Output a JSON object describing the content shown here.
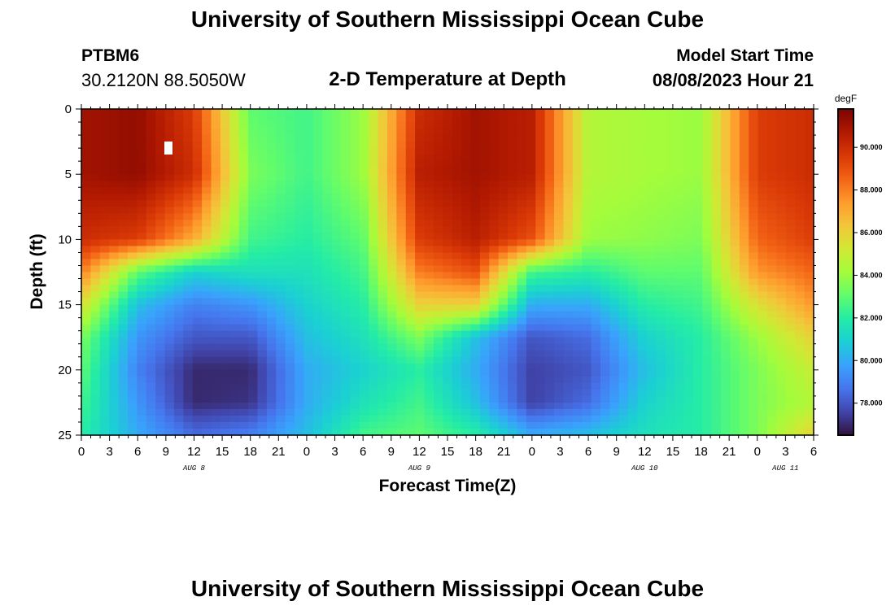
{
  "header": {
    "title": "University of Southern Mississippi Ocean Cube",
    "station": "PTBM6",
    "coords": "30.2120N  88.5050W",
    "subtitle": "2-D Temperature at Depth",
    "model_start_label": "Model Start Time",
    "model_start_value": "08/08/2023 Hour 21"
  },
  "footer": {
    "title": "University of Southern Mississippi Ocean Cube"
  },
  "chart_data": {
    "type": "heatmap",
    "title": "2-D Temperature at Depth",
    "xlabel": "Forecast Time(Z)",
    "ylabel": "Depth (ft)",
    "x_range_hours": [
      0,
      78
    ],
    "y_range_ft": [
      0,
      25
    ],
    "y_ticks": [
      0,
      5,
      10,
      15,
      20,
      25
    ],
    "x_tick_labels": [
      "0",
      "3",
      "6",
      "9",
      "12",
      "15",
      "18",
      "21",
      "0",
      "3",
      "6",
      "9",
      "12",
      "15",
      "18",
      "21",
      "0",
      "3",
      "6",
      "9",
      "12",
      "15",
      "18",
      "21",
      "0",
      "3",
      "6"
    ],
    "date_labels": [
      {
        "label": "AUG 8",
        "hour": 12
      },
      {
        "label": "AUG 9",
        "hour": 36
      },
      {
        "label": "AUG 10",
        "hour": 60
      },
      {
        "label": "AUG 11",
        "hour": 75
      }
    ],
    "colorbar": {
      "unit": "degF",
      "min": 76.5,
      "max": 91.8,
      "ticks": [
        "78.000",
        "80.000",
        "82.000",
        "84.000",
        "86.000",
        "88.000",
        "90.000"
      ],
      "tick_values": [
        78,
        80,
        82,
        84,
        86,
        88,
        90
      ],
      "colors": [
        "#30123b",
        "#4145ab",
        "#4675ed",
        "#39a2fc",
        "#1bcfd4",
        "#24eca6",
        "#61fc6c",
        "#a4fc3b",
        "#d1e834",
        "#f3c63a",
        "#fe9b2d",
        "#f36315",
        "#d93806",
        "#b11901",
        "#7a0402"
      ]
    },
    "grid": {
      "n_depth": 50,
      "n_time": 79,
      "hours": [
        0,
        6,
        12,
        18,
        24,
        30,
        36,
        42,
        48,
        54,
        60,
        66,
        72,
        78
      ],
      "depths": [
        0,
        5,
        10,
        12.5,
        15,
        17.5,
        20,
        22.5,
        25
      ],
      "temperature_degF": [
        [
          91.0,
          91.3,
          89.5,
          83.0,
          82.5,
          84.0,
          90.0,
          91.0,
          90.5,
          84.5,
          84.2,
          84.0,
          89.5,
          90.0
        ],
        [
          91.0,
          91.3,
          90.0,
          83.5,
          82.5,
          84.0,
          90.5,
          91.0,
          90.5,
          84.5,
          84.2,
          84.0,
          89.5,
          90.0
        ],
        [
          90.0,
          89.5,
          87.0,
          82.5,
          82.0,
          83.0,
          89.5,
          90.5,
          89.0,
          84.0,
          83.8,
          83.5,
          88.5,
          89.5
        ],
        [
          88.0,
          83.0,
          81.0,
          81.5,
          81.5,
          82.5,
          88.0,
          89.0,
          82.5,
          82.0,
          83.0,
          83.0,
          87.5,
          88.5
        ],
        [
          85.5,
          80.5,
          79.0,
          79.5,
          81.0,
          82.0,
          86.0,
          86.0,
          80.0,
          80.0,
          82.0,
          82.5,
          85.5,
          87.5
        ],
        [
          83.5,
          79.5,
          78.0,
          78.0,
          80.5,
          81.5,
          83.5,
          80.5,
          78.0,
          78.5,
          81.0,
          82.0,
          84.0,
          86.0
        ],
        [
          83.0,
          79.0,
          77.0,
          77.0,
          80.0,
          81.0,
          82.0,
          80.0,
          77.5,
          78.0,
          80.5,
          82.0,
          83.5,
          85.0
        ],
        [
          82.5,
          79.5,
          77.0,
          77.2,
          80.0,
          81.5,
          82.5,
          80.5,
          77.5,
          78.5,
          81.0,
          82.0,
          83.5,
          84.5
        ],
        [
          82.0,
          80.0,
          78.5,
          79.0,
          80.5,
          82.5,
          83.0,
          82.0,
          80.0,
          80.5,
          81.5,
          82.0,
          83.5,
          86.0
        ]
      ]
    }
  }
}
